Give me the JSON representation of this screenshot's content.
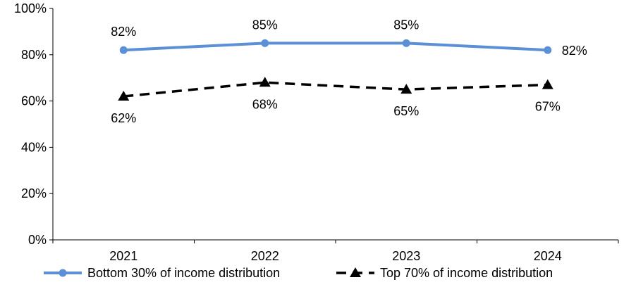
{
  "chart_data": {
    "type": "line",
    "categories": [
      "2021",
      "2022",
      "2023",
      "2024"
    ],
    "ylim": [
      0,
      100
    ],
    "yticks": [
      0,
      20,
      40,
      60,
      80,
      100
    ],
    "ytick_labels": [
      "0%",
      "20%",
      "40%",
      "60%",
      "80%",
      "100%"
    ],
    "grid": false,
    "legend_position": "bottom",
    "series": [
      {
        "name": "Bottom 30% of income distribution",
        "values": [
          82,
          85,
          85,
          82
        ],
        "labels": [
          "82%",
          "85%",
          "85%",
          "82%"
        ],
        "color": "#5B8FD6",
        "line_style": "solid",
        "marker": "circle"
      },
      {
        "name": "Top 70% of income distribution",
        "values": [
          62,
          68,
          65,
          67
        ],
        "labels": [
          "62%",
          "68%",
          "65%",
          "67%"
        ],
        "color": "#000000",
        "line_style": "dashed",
        "marker": "triangle"
      }
    ]
  }
}
